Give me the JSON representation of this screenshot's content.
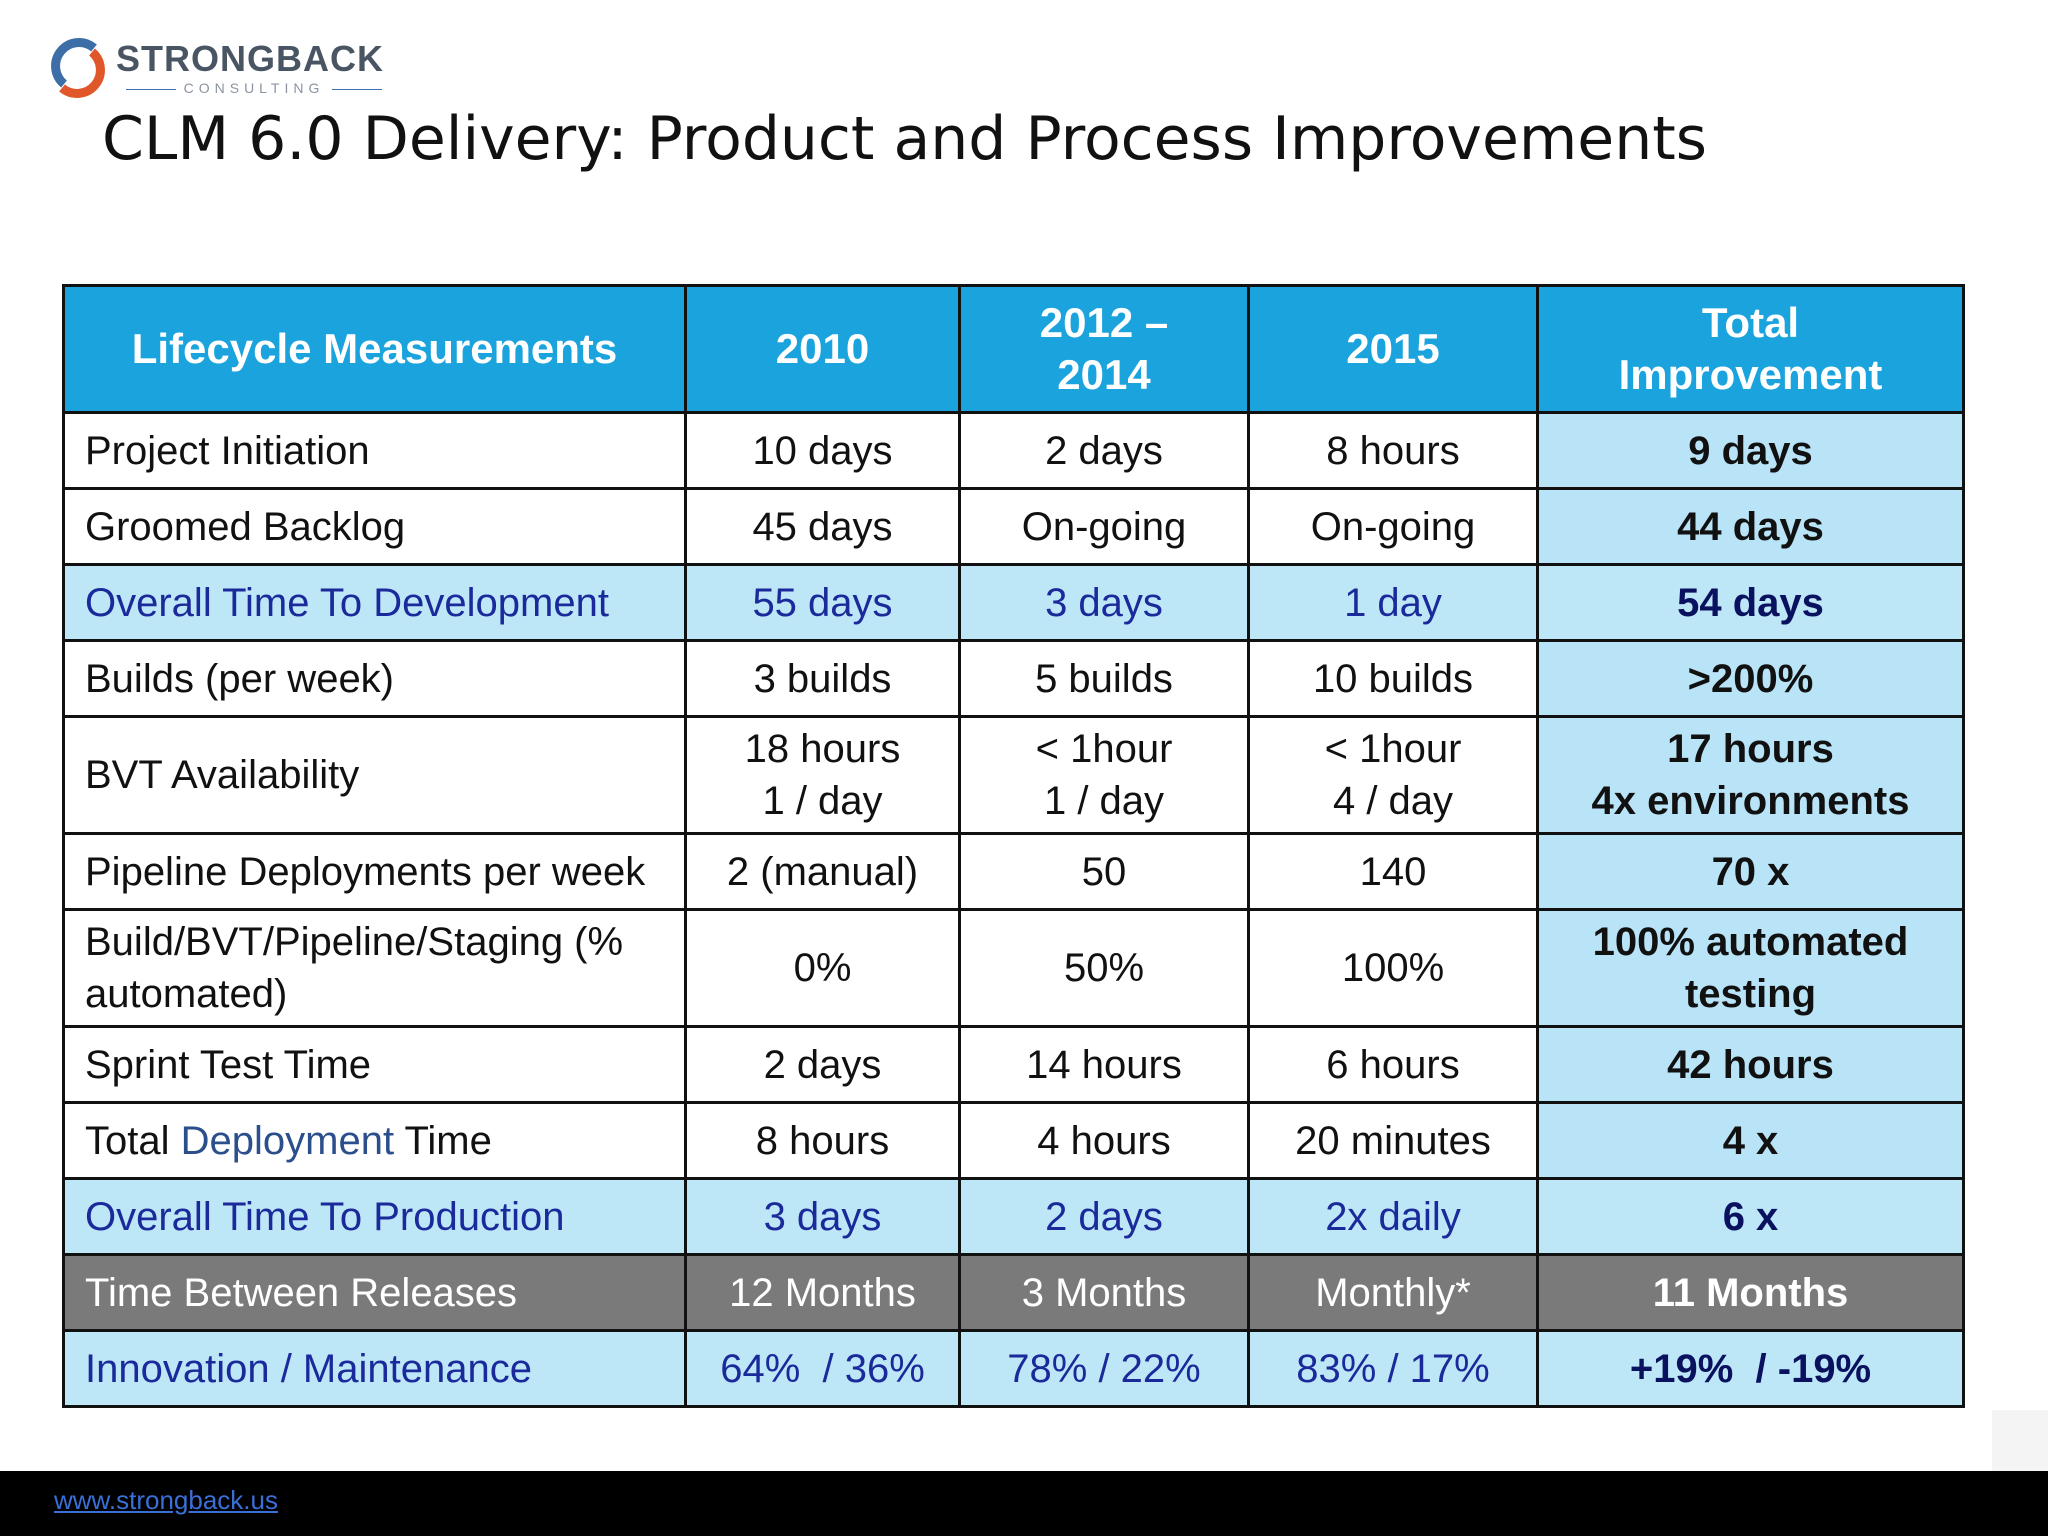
{
  "logo": {
    "name": "STRONGBACK",
    "sub": "CONSULTING"
  },
  "title": "CLM 6.0 Delivery: Product and Process Improvements",
  "table": {
    "headers": [
      "Lifecycle Measurements",
      "2010",
      "2012 – 2014",
      "2015",
      "Total Improvement"
    ],
    "rows": [
      {
        "label": "Project Initiation",
        "c2010": "10 days",
        "c2012": "2 days",
        "c2015": "8 hours",
        "total": "9 days"
      },
      {
        "label": "Groomed Backlog",
        "c2010": "45 days",
        "c2012": "On-going",
        "c2015": "On-going",
        "total": "44 days"
      },
      {
        "label": "Overall Time To Development",
        "c2010": "55 days",
        "c2012": "3 days",
        "c2015": "1 day",
        "total": "54 days"
      },
      {
        "label": "Builds (per week)",
        "c2010": "3 builds",
        "c2012": "5 builds",
        "c2015": "10 builds",
        "total": ">200%"
      },
      {
        "label": "BVT Availability",
        "c2010_l1": "18 hours",
        "c2010_l2": "1 / day",
        "c2012_l1": "< 1hour",
        "c2012_l2": "1 / day",
        "c2015_l1": "< 1hour",
        "c2015_l2": "4 / day",
        "total_l1": "17 hours",
        "total_l2": "4x environments"
      },
      {
        "label": "Pipeline Deployments per week",
        "c2010": "2 (manual)",
        "c2012": "50",
        "c2015": "140",
        "total": "70 x"
      },
      {
        "label_l1": "Build/BVT/Pipeline/Staging (%",
        "label_l2": "automated)",
        "c2010": "0%",
        "c2012": "50%",
        "c2015": "100%",
        "total_l1": "100% automated",
        "total_l2": "testing"
      },
      {
        "label": "Sprint Test Time",
        "c2010": "2 days",
        "c2012": "14 hours",
        "c2015": "6 hours",
        "total": "42 hours"
      },
      {
        "label_a": "Total",
        "label_b": "Deployment",
        "label_c": "Time",
        "c2010": "8 hours",
        "c2012": "4 hours",
        "c2015": "20 minutes",
        "total": "4 x"
      },
      {
        "label": "Overall Time To Production",
        "c2010": "3 days",
        "c2012": "2 days",
        "c2015": "2x daily",
        "total": "6 x"
      },
      {
        "label": "Time Between Releases",
        "c2010": "12 Months",
        "c2012": "3 Months",
        "c2015": "Monthly*",
        "total": "11 Months"
      },
      {
        "label": "Innovation / Maintenance",
        "c2010": "64%  / 36%",
        "c2012": "78% / 22%",
        "c2015": "83% / 17%",
        "total": "+19%  / -19%"
      }
    ]
  },
  "footer": {
    "link": "www.strongback.us"
  },
  "colors": {
    "header_bg": "#1aa3dc",
    "improvement_bg": "#b9e3f6",
    "highlight_text": "#1a2a9a",
    "gray_row": "#7a7a7a"
  }
}
